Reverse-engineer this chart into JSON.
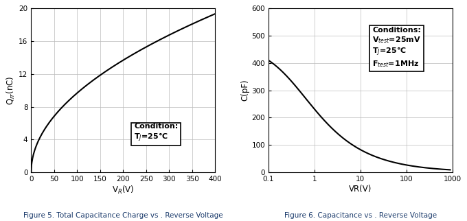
{
  "fig5": {
    "xlabel": "V$_{R}$(V)",
    "ylabel": "Q$_{rr}$(nC)",
    "xlim": [
      0,
      400
    ],
    "ylim": [
      0,
      20
    ],
    "xticks": [
      0,
      50,
      100,
      150,
      200,
      250,
      300,
      350,
      400
    ],
    "yticks": [
      0,
      4,
      8,
      12,
      16,
      20
    ],
    "annotation_line1": "Condition:",
    "annotation_line2": "T$_{J}$=25°C",
    "caption": "Figure 5. Total Capacitance Charge vs . Reverse Voltage"
  },
  "fig6": {
    "xlabel": "VR(V)",
    "ylabel": "C(pF)",
    "xlim_log": [
      0.1,
      1000
    ],
    "ylim": [
      0,
      600
    ],
    "yticks": [
      0,
      100,
      200,
      300,
      400,
      500,
      600
    ],
    "xtick_labels": [
      "0.1",
      "1",
      "10",
      "100",
      "1000"
    ],
    "annotation_line1": "Conditions:",
    "annotation_line2": "V$_{test}$=25mV",
    "annotation_line3": "T$_{J}$=25°C",
    "annotation_line4": "F$_{test}$=1MHz",
    "caption": "Figure 6. Capacitance vs . Reverse Voltage"
  },
  "line_color": "#000000",
  "line_width": 1.5,
  "grid_color": "#bbbbbb",
  "grid_linewidth": 0.5,
  "background_color": "#ffffff",
  "box_facecolor": "#ffffff",
  "caption_color": "#1a3a6b",
  "caption_fontsize": 7.5,
  "tick_fontsize": 7.5,
  "label_fontsize": 8.5,
  "annot_fontsize": 8.0
}
